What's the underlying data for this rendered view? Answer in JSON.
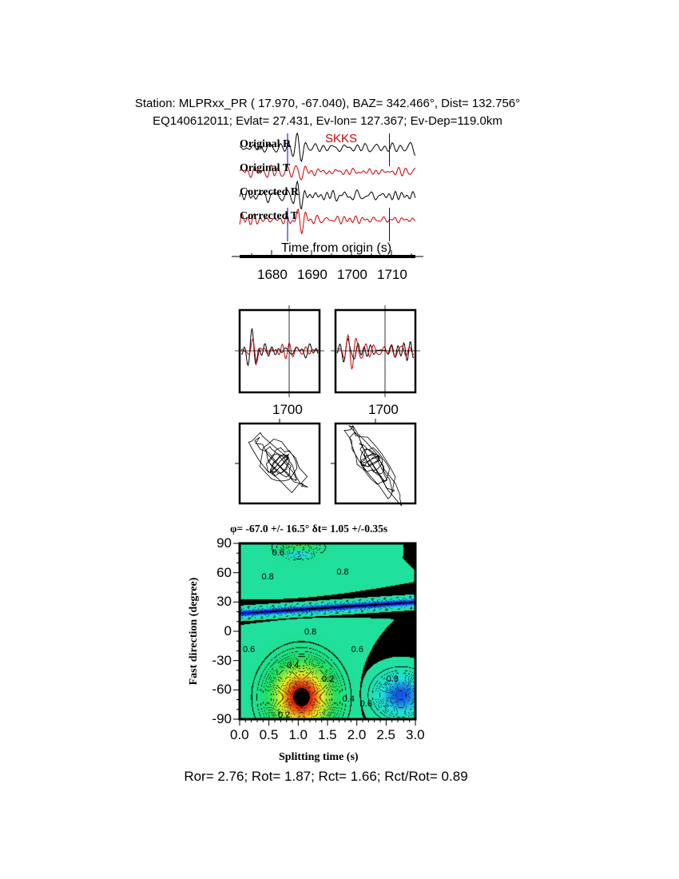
{
  "header": {
    "line1": "Station: MLPRxx_PR (  17.970,  -67.040), BAZ=  342.466°, Dist=  132.756°",
    "line2": "EQ140612011; Evlat=  27.431, Ev-lon= 127.367; Ev-Dep=119.0km"
  },
  "chart_data": [
    {
      "type": "line",
      "phase_label": "SKKS",
      "trace_labels": [
        "Original R",
        "Original T",
        "Corrected R",
        "Corrected T"
      ],
      "xlabel": "Time from origin (s)",
      "xticks": [
        "1680",
        "1690",
        "1700",
        "1710"
      ],
      "xlim": [
        1672,
        1716
      ],
      "window": [
        1684,
        1709.5
      ],
      "colors": {
        "R": "#000000",
        "T": "#cc0000",
        "window": "#0000cc"
      }
    },
    {
      "type": "line",
      "panels": [
        "original-waveforms",
        "corrected-waveforms"
      ],
      "xticks": [
        "1700",
        "1700"
      ]
    },
    {
      "type": "scatter",
      "panels": [
        "original-particle-motion",
        "corrected-particle-motion"
      ]
    },
    {
      "type": "heatmap",
      "title": "φ= -67.0 +/- 16.5° δt= 1.05 +/-0.35s",
      "xlabel": "Splitting time (s)",
      "ylabel": "Fast direction (degree)",
      "xticks": [
        "0.0",
        "0.5",
        "1.0",
        "1.5",
        "2.0",
        "2.5",
        "3.0"
      ],
      "yticks": [
        "90",
        "60",
        "30",
        "0",
        "-30",
        "-60",
        "-90"
      ],
      "xlim": [
        0,
        3
      ],
      "ylim": [
        -90,
        90
      ],
      "best": {
        "dt": 1.05,
        "phi": -67.0
      },
      "contour_labels": [
        "0.6",
        "0.8",
        "0.8",
        "0.8",
        "0.8",
        "0.6",
        "0.6",
        "0.4",
        "0.2",
        "0.8",
        "0.4",
        "0.6",
        "0.2"
      ],
      "colormap": [
        "#e01010",
        "#f0f020",
        "#20e060",
        "#20e0e0",
        "#1010f0"
      ]
    }
  ],
  "footer": "Ror= 2.76; Rot= 1.87; Rct= 1.66; Rct/Rot= 0.89"
}
